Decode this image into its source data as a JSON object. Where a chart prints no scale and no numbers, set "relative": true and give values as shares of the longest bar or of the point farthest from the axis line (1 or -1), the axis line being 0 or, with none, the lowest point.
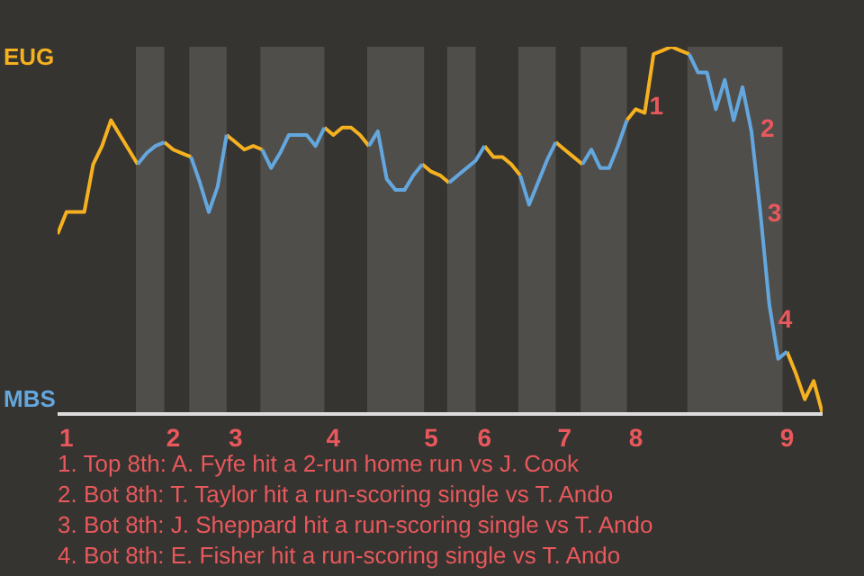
{
  "chart_data": {
    "type": "line",
    "categories": [
      null,
      "1",
      null,
      null,
      null,
      null,
      null,
      null,
      null,
      null,
      null,
      null,
      null,
      "2",
      null,
      null,
      null,
      null,
      null,
      null,
      "3",
      null,
      null,
      null,
      null,
      null,
      null,
      null,
      null,
      null,
      null,
      "4",
      null,
      null,
      null,
      null,
      null,
      null,
      null,
      null,
      null,
      null,
      "5",
      null,
      null,
      null,
      null,
      null,
      "6",
      null,
      null,
      null,
      null,
      null,
      null,
      null,
      null,
      "7",
      null,
      null,
      null,
      null,
      null,
      null,
      null,
      "8",
      null,
      null,
      null,
      null,
      null,
      null,
      null,
      null,
      null,
      null,
      null,
      null,
      null,
      null,
      null,
      null,
      "9",
      null,
      null,
      null,
      null
    ],
    "series": [
      {
        "name": "EUG",
        "color": "#f5b120",
        "values": [
          0.49,
          0.55,
          0.55,
          0.55,
          0.68,
          0.73,
          0.8,
          0.76,
          0.72,
          0.68,
          null,
          null,
          0.74,
          0.72,
          0.71,
          0.7,
          null,
          null,
          null,
          0.76,
          0.74,
          0.72,
          0.73,
          0.72,
          null,
          null,
          null,
          null,
          null,
          null,
          0.78,
          0.76,
          0.78,
          0.78,
          0.76,
          0.73,
          null,
          null,
          null,
          null,
          null,
          0.68,
          0.66,
          0.65,
          0.63,
          null,
          null,
          null,
          0.73,
          0.7,
          0.7,
          0.68,
          0.65,
          null,
          null,
          null,
          0.74,
          0.72,
          0.7,
          0.68,
          null,
          null,
          null,
          null,
          0.8,
          0.83,
          0.82,
          0.98,
          0.99,
          1,
          0.99,
          0.98,
          null,
          null,
          null,
          null,
          null,
          null,
          null,
          null,
          null,
          null,
          0.17,
          0.11,
          0.04,
          0.09,
          0
        ]
      },
      {
        "name": "MBS",
        "color": "#63a7de",
        "values": [
          null,
          null,
          null,
          null,
          null,
          null,
          null,
          null,
          null,
          0.68,
          0.71,
          0.73,
          0.74,
          null,
          null,
          0.7,
          0.63,
          0.55,
          0.62,
          0.76,
          null,
          null,
          null,
          0.72,
          0.67,
          0.71,
          0.76,
          0.76,
          0.76,
          0.73,
          0.78,
          null,
          null,
          null,
          null,
          0.73,
          0.77,
          0.64,
          0.61,
          0.61,
          0.65,
          0.68,
          null,
          null,
          0.63,
          0.65,
          0.67,
          0.69,
          0.73,
          null,
          null,
          null,
          0.65,
          0.57,
          0.63,
          0.69,
          0.74,
          null,
          null,
          0.68,
          0.72,
          0.67,
          0.67,
          0.73,
          0.8,
          null,
          null,
          null,
          null,
          null,
          null,
          0.98,
          0.93,
          0.93,
          0.83,
          0.91,
          0.8,
          0.89,
          0.77,
          0.55,
          0.3,
          0.15,
          0.17,
          null,
          null,
          null,
          null
        ]
      }
    ],
    "relative": true,
    "marker": "none",
    "line_style": "solid",
    "annotations": [
      "1",
      "2",
      "3",
      "4",
      "1. Top 8th: A. Fyfe hit a 2-run home run vs J. Cook",
      "2. Bot 8th: T. Taylor hit a run-scoring single vs T. Ando",
      "3. Bot 8th: J. Sheppard hit a run-scoring single vs T. Ando",
      "4. Bot 8th: E. Fisher hit a run-scoring single vs T. Ando"
    ]
  }
}
